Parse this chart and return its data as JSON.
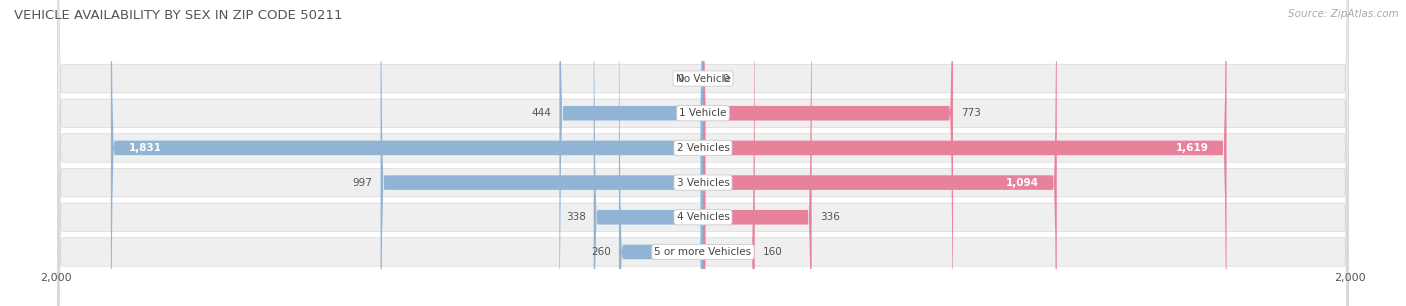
{
  "title": "VEHICLE AVAILABILITY BY SEX IN ZIP CODE 50211",
  "source": "Source: ZipAtlas.com",
  "categories": [
    "No Vehicle",
    "1 Vehicle",
    "2 Vehicles",
    "3 Vehicles",
    "4 Vehicles",
    "5 or more Vehicles"
  ],
  "male_values": [
    0,
    444,
    1831,
    997,
    338,
    260
  ],
  "female_values": [
    0,
    773,
    1619,
    1094,
    336,
    160
  ],
  "male_color": "#92b4d4",
  "female_color": "#e8829a",
  "row_bg_color": "#efefef",
  "max_val": 2000,
  "title_fontsize": 9.5,
  "source_fontsize": 7.5,
  "axis_label_fontsize": 8,
  "bar_label_fontsize": 7.5,
  "category_fontsize": 7.5,
  "legend_fontsize": 8.5
}
